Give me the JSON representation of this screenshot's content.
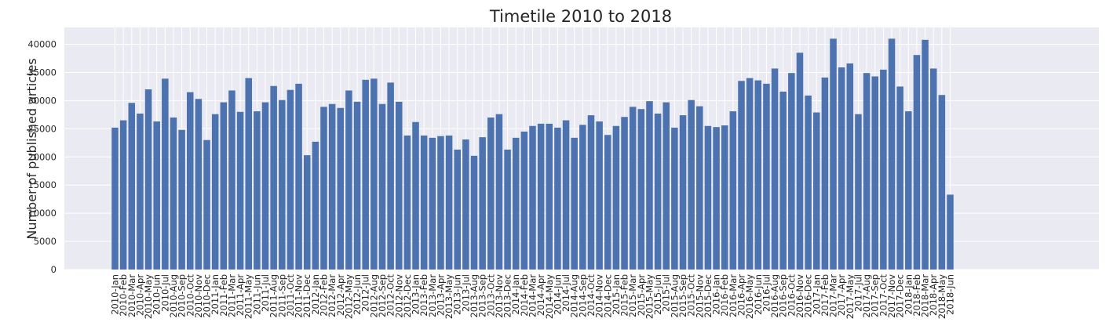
{
  "chart_data": {
    "type": "bar",
    "title": "Timetile 2010 to 2018",
    "xlabel": "",
    "ylabel": "Number of published articles",
    "ylim": [
      0,
      43000
    ],
    "yticks": [
      0,
      5000,
      10000,
      15000,
      20000,
      25000,
      30000,
      35000,
      40000
    ],
    "grid": true,
    "legend": "none",
    "bar_color": "#4c72b0",
    "background_color": "#eaeaf2",
    "grid_color": "#ffffff",
    "categories": [
      "2010-Jan",
      "2010-Feb",
      "2010-Mar",
      "2010-Apr",
      "2010-May",
      "2010-Jun",
      "2010-Jul",
      "2010-Aug",
      "2010-Sep",
      "2010-Oct",
      "2010-Nov",
      "2010-Dec",
      "2011-Jan",
      "2011-Feb",
      "2011-Mar",
      "2011-Apr",
      "2011-May",
      "2011-Jun",
      "2011-Jul",
      "2011-Aug",
      "2011-Sep",
      "2011-Oct",
      "2011-Nov",
      "2011-Dec",
      "2012-Jan",
      "2012-Feb",
      "2012-Mar",
      "2012-Apr",
      "2012-May",
      "2012-Jun",
      "2012-Jul",
      "2012-Aug",
      "2012-Sep",
      "2012-Oct",
      "2012-Nov",
      "2012-Dec",
      "2013-Jan",
      "2013-Feb",
      "2013-Mar",
      "2013-Apr",
      "2013-May",
      "2013-Jun",
      "2013-Jul",
      "2013-Aug",
      "2013-Sep",
      "2013-Oct",
      "2013-Nov",
      "2013-Dec",
      "2014-Jan",
      "2014-Feb",
      "2014-Mar",
      "2014-Apr",
      "2014-May",
      "2014-Jun",
      "2014-Jul",
      "2014-Aug",
      "2014-Sep",
      "2014-Oct",
      "2014-Nov",
      "2014-Dec",
      "2015-Jan",
      "2015-Feb",
      "2015-Mar",
      "2015-Apr",
      "2015-May",
      "2015-Jun",
      "2015-Jul",
      "2015-Aug",
      "2015-Sep",
      "2015-Oct",
      "2015-Nov",
      "2015-Dec",
      "2016-Jan",
      "2016-Feb",
      "2016-Mar",
      "2016-Apr",
      "2016-May",
      "2016-Jun",
      "2016-Jul",
      "2016-Aug",
      "2016-Sep",
      "2016-Oct",
      "2016-Nov",
      "2016-Dec",
      "2017-Jan",
      "2017-Feb",
      "2017-Mar",
      "2017-Apr",
      "2017-May",
      "2017-Jul",
      "2017-Aug",
      "2017-Sep",
      "2017-Oct",
      "2017-Nov",
      "2017-Dec",
      "2018-Jan",
      "2018-Feb",
      "2018-Mar",
      "2018-Apr",
      "2018-May",
      "2018-Jun"
    ],
    "values": [
      25200,
      26500,
      29600,
      27700,
      32000,
      26300,
      33900,
      27000,
      24800,
      31500,
      30300,
      23000,
      27600,
      29700,
      31800,
      28000,
      34000,
      28100,
      29700,
      32600,
      30100,
      31900,
      33000,
      20300,
      22700,
      28900,
      29400,
      28700,
      31800,
      29800,
      33700,
      33900,
      29400,
      33200,
      29800,
      23800,
      26200,
      23800,
      23400,
      23700,
      23800,
      21300,
      23100,
      20200,
      23500,
      27000,
      27600,
      21300,
      23400,
      24500,
      25500,
      25900,
      25900,
      25200,
      26500,
      23400,
      25700,
      27400,
      26300,
      23900,
      25500,
      27100,
      28900,
      28500,
      29900,
      27700,
      29700,
      25200,
      27400,
      30100,
      29000,
      25500,
      25300,
      25600,
      28100,
      33500,
      34000,
      33600,
      33000,
      35700,
      31600,
      34900,
      38500,
      30900,
      27900,
      34100,
      41000,
      35900,
      36600,
      27600,
      34900,
      34300,
      35500,
      41000,
      32500,
      28100,
      38100,
      40800,
      35700,
      31000,
      13300
    ]
  }
}
